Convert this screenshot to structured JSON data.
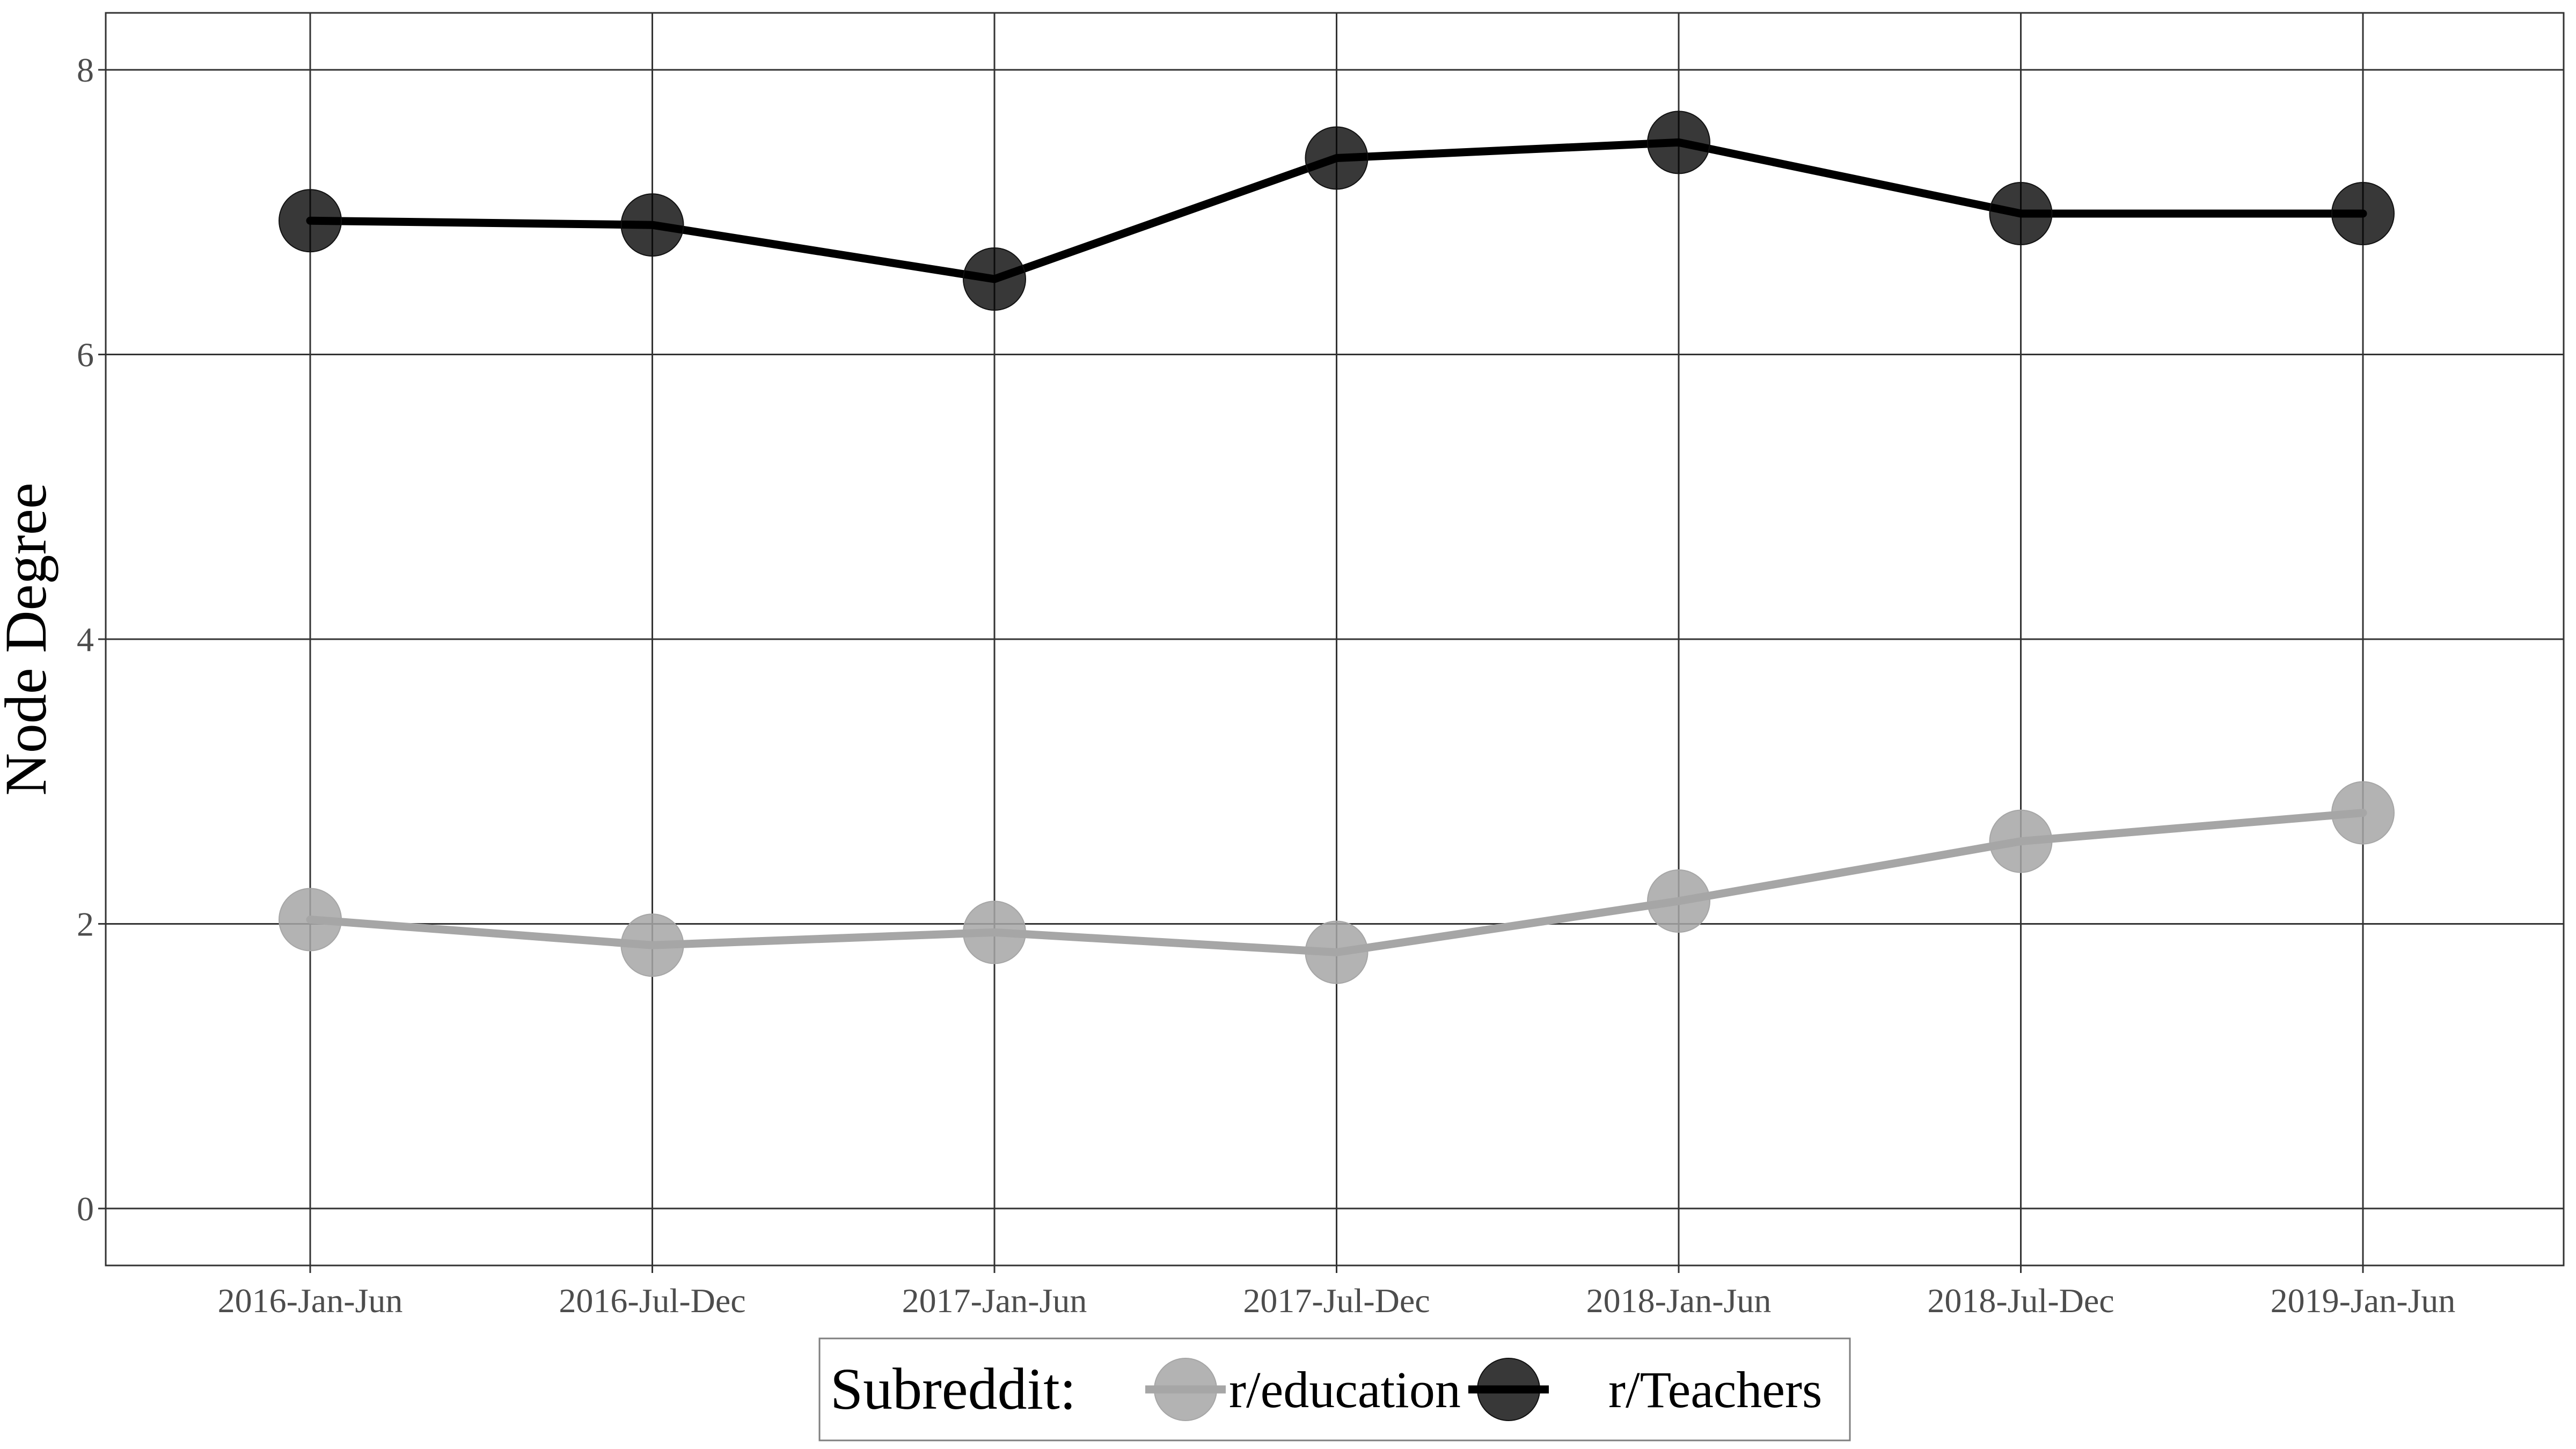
{
  "chart_data": {
    "type": "line",
    "title": "",
    "xlabel": "",
    "ylabel": "Node Degree",
    "categories": [
      "2016-Jan-Jun",
      "2016-Jul-Dec",
      "2017-Jan-Jun",
      "2017-Jul-Dec",
      "2018-Jan-Jun",
      "2018-Jul-Dec",
      "2019-Jan-Jun"
    ],
    "y_ticks": [
      "0",
      "2",
      "4",
      "6",
      "8"
    ],
    "ylim": [
      -0.4,
      8.4
    ],
    "grid": true,
    "legend_position": "bottom",
    "legend_title": "Subreddit:",
    "series": [
      {
        "name": "r/education",
        "color": "#a6a6a6",
        "values": [
          2.03,
          1.85,
          1.94,
          1.8,
          2.16,
          2.58,
          2.78
        ]
      },
      {
        "name": "r/Teachers",
        "color": "#000000",
        "values": [
          6.94,
          6.91,
          6.53,
          7.38,
          7.49,
          6.99,
          6.99
        ]
      }
    ]
  }
}
